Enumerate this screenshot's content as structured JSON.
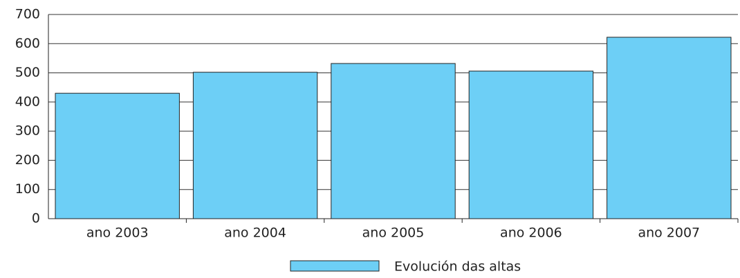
{
  "chart_data": {
    "type": "bar",
    "categories": [
      "ano 2003",
      "ano 2004",
      "ano 2005",
      "ano 2006",
      "ano 2007"
    ],
    "series": [
      {
        "name": "Evolución das altas",
        "color": "#6dcff6",
        "values": [
          430,
          502,
          532,
          506,
          622
        ]
      }
    ],
    "ylim": [
      0,
      700
    ],
    "yticks": [
      0,
      100,
      200,
      300,
      400,
      500,
      600,
      700
    ],
    "grid": true,
    "legend": "bottom"
  }
}
